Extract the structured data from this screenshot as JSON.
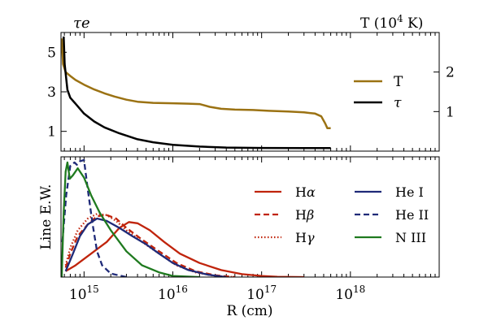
{
  "chart_data": [
    {
      "type": "line",
      "panel": "top",
      "xscale": "log",
      "xlim_cm": [
        550000000000000.0,
        1e+19
      ],
      "left_axis": {
        "label_html": "τe",
        "ylim": [
          0,
          6
        ],
        "ticks": [
          1,
          3,
          5
        ],
        "tick_labels": [
          "1",
          "3",
          "5"
        ]
      },
      "right_axis": {
        "label_prefix": "T (10",
        "label_exp": "4",
        "label_suffix": "  K)",
        "ylim": [
          0,
          3.0
        ],
        "ticks": [
          1,
          2
        ],
        "tick_labels": [
          "1",
          "2"
        ]
      },
      "legend_position": "right",
      "series": [
        {
          "name": "T",
          "axis": "right",
          "color": "#9B7213",
          "dash": "solid",
          "points": [
            [
              560000000000000.0,
              2.85
            ],
            [
              580000000000000.0,
              2.2
            ],
            [
              620000000000000.0,
              2.0
            ],
            [
              700000000000000.0,
              1.9
            ],
            [
              800000000000000.0,
              1.8
            ],
            [
              1000000000000000.0,
              1.68
            ],
            [
              1300000000000000.0,
              1.56
            ],
            [
              1700000000000000.0,
              1.46
            ],
            [
              2200000000000000.0,
              1.38
            ],
            [
              3000000000000000.0,
              1.3
            ],
            [
              4000000000000000.0,
              1.25
            ],
            [
              6000000000000000.0,
              1.22
            ],
            [
              1e+16,
              1.21
            ],
            [
              1.5e+16,
              1.2
            ],
            [
              2e+16,
              1.19
            ],
            [
              2.6e+16,
              1.12
            ],
            [
              3.5e+16,
              1.07
            ],
            [
              5e+16,
              1.05
            ],
            [
              8e+16,
              1.04
            ],
            [
              1.2e+17,
              1.02
            ],
            [
              2e+17,
              1.0
            ],
            [
              3e+17,
              0.98
            ],
            [
              4e+17,
              0.95
            ],
            [
              4.7e+17,
              0.88
            ],
            [
              5.2e+17,
              0.7
            ],
            [
              5.5e+17,
              0.58
            ],
            [
              6e+17,
              0.58
            ]
          ]
        },
        {
          "name": "τ",
          "axis": "left",
          "color": "#000000",
          "dash": "solid",
          "points": [
            [
              590000000000000.0,
              5.8
            ],
            [
              605000000000000.0,
              4.4
            ],
            [
              650000000000000.0,
              3.1
            ],
            [
              700000000000000.0,
              2.7
            ],
            [
              800000000000000.0,
              2.4
            ],
            [
              1000000000000000.0,
              1.9
            ],
            [
              1300000000000000.0,
              1.5
            ],
            [
              1700000000000000.0,
              1.2
            ],
            [
              2500000000000000.0,
              0.9
            ],
            [
              4000000000000000.0,
              0.6
            ],
            [
              6000000000000000.0,
              0.45
            ],
            [
              1e+16,
              0.32
            ],
            [
              2e+16,
              0.23
            ],
            [
              4e+16,
              0.18
            ],
            [
              1e+17,
              0.16
            ],
            [
              3e+17,
              0.15
            ],
            [
              6e+17,
              0.15
            ]
          ]
        }
      ]
    },
    {
      "type": "line",
      "panel": "bottom",
      "xscale": "log",
      "xlim_cm": [
        550000000000000.0,
        1e+19
      ],
      "xlabel": "R (cm)",
      "ylabel": "Line E.W.",
      "ylim": [
        0,
        1.0
      ],
      "x_ticks": [
        1000000000000000.0,
        1e+16,
        1e+17,
        1e+18
      ],
      "x_tick_base": "10",
      "x_tick_exps": [
        "15",
        "16",
        "17",
        "18"
      ],
      "legend_position": "upper right",
      "series": [
        {
          "name": "Hα",
          "name_base": "H",
          "name_sym": "α",
          "color": "#C0240C",
          "dash": "solid",
          "points": [
            [
              620000000000000.0,
              0.05
            ],
            [
              800000000000000.0,
              0.1
            ],
            [
              1200000000000000.0,
              0.2
            ],
            [
              1800000000000000.0,
              0.3
            ],
            [
              2500000000000000.0,
              0.42
            ],
            [
              3200000000000000.0,
              0.47
            ],
            [
              4000000000000000.0,
              0.46
            ],
            [
              5500000000000000.0,
              0.4
            ],
            [
              8000000000000000.0,
              0.3
            ],
            [
              1.2e+16,
              0.2
            ],
            [
              2e+16,
              0.12
            ],
            [
              3.5e+16,
              0.06
            ],
            [
              6e+16,
              0.025
            ],
            [
              1e+17,
              0.01
            ],
            [
              1.5e+17,
              0.003
            ],
            [
              3e+17,
              0.0
            ]
          ]
        },
        {
          "name": "Hβ",
          "name_base": "H",
          "name_sym": "β",
          "color": "#C0240C",
          "dash": "7,4",
          "points": [
            [
              620000000000000.0,
              0.08
            ],
            [
              700000000000000.0,
              0.2
            ],
            [
              850000000000000.0,
              0.35
            ],
            [
              1100000000000000.0,
              0.45
            ],
            [
              1400000000000000.0,
              0.52
            ],
            [
              1800000000000000.0,
              0.53
            ],
            [
              2300000000000000.0,
              0.5
            ],
            [
              3000000000000000.0,
              0.42
            ],
            [
              4500000000000000.0,
              0.32
            ],
            [
              7000000000000000.0,
              0.22
            ],
            [
              1.1e+16,
              0.12
            ],
            [
              1.8e+16,
              0.05
            ],
            [
              3e+16,
              0.015
            ],
            [
              5e+16,
              0.0
            ]
          ]
        },
        {
          "name": "Hγ",
          "name_base": "H",
          "name_sym": "γ",
          "color": "#C0240C",
          "dash": "1.5,2.5",
          "points": [
            [
              620000000000000.0,
              0.1
            ],
            [
              700000000000000.0,
              0.25
            ],
            [
              850000000000000.0,
              0.4
            ],
            [
              1100000000000000.0,
              0.5
            ],
            [
              1400000000000000.0,
              0.54
            ],
            [
              1800000000000000.0,
              0.53
            ],
            [
              2300000000000000.0,
              0.48
            ],
            [
              3000000000000000.0,
              0.4
            ],
            [
              4500000000000000.0,
              0.3
            ],
            [
              7000000000000000.0,
              0.2
            ],
            [
              1.1e+16,
              0.1
            ],
            [
              1.8e+16,
              0.04
            ],
            [
              3e+16,
              0.01
            ],
            [
              5e+16,
              0.0
            ]
          ]
        },
        {
          "name": "He I",
          "name_base": "He I",
          "name_sym": "",
          "color": "#1F2A78",
          "dash": "solid",
          "points": [
            [
              620000000000000.0,
              0.05
            ],
            [
              750000000000000.0,
              0.2
            ],
            [
              900000000000000.0,
              0.35
            ],
            [
              1100000000000000.0,
              0.45
            ],
            [
              1400000000000000.0,
              0.5
            ],
            [
              1800000000000000.0,
              0.48
            ],
            [
              2500000000000000.0,
              0.42
            ],
            [
              3500000000000000.0,
              0.35
            ],
            [
              5000000000000000.0,
              0.28
            ],
            [
              7000000000000000.0,
              0.2
            ],
            [
              1e+16,
              0.12
            ],
            [
              1.5e+16,
              0.06
            ],
            [
              2.5e+16,
              0.02
            ],
            [
              4e+16,
              0.0
            ]
          ]
        },
        {
          "name": "He II",
          "name_base": "He II",
          "name_sym": "",
          "color": "#1F2A78",
          "dash": "7,4",
          "points": [
            [
              570000000000000.0,
              0.3
            ],
            [
              630000000000000.0,
              0.7
            ],
            [
              700000000000000.0,
              0.95
            ],
            [
              780000000000000.0,
              0.98
            ],
            [
              830000000000000.0,
              0.96
            ],
            [
              900000000000000.0,
              0.99
            ],
            [
              1000000000000000.0,
              1.0
            ],
            [
              1100000000000000.0,
              0.75
            ],
            [
              1250000000000000.0,
              0.45
            ],
            [
              1400000000000000.0,
              0.22
            ],
            [
              1600000000000000.0,
              0.1
            ],
            [
              2000000000000000.0,
              0.03
            ],
            [
              3000000000000000.0,
              0.0
            ]
          ]
        },
        {
          "name": "N III",
          "name_base": "N III",
          "name_sym": "",
          "color": "#1F7A1F",
          "dash": "solid",
          "points": [
            [
              560000000000000.0,
              0.0
            ],
            [
              590000000000000.0,
              0.55
            ],
            [
              620000000000000.0,
              0.9
            ],
            [
              650000000000000.0,
              0.98
            ],
            [
              690000000000000.0,
              0.84
            ],
            [
              750000000000000.0,
              0.87
            ],
            [
              850000000000000.0,
              0.93
            ],
            [
              1000000000000000.0,
              0.85
            ],
            [
              1200000000000000.0,
              0.7
            ],
            [
              1500000000000000.0,
              0.55
            ],
            [
              2000000000000000.0,
              0.4
            ],
            [
              3000000000000000.0,
              0.22
            ],
            [
              4500000000000000.0,
              0.1
            ],
            [
              7000000000000000.0,
              0.04
            ],
            [
              1e+16,
              0.01
            ],
            [
              2e+16,
              0.0
            ]
          ]
        }
      ]
    }
  ]
}
